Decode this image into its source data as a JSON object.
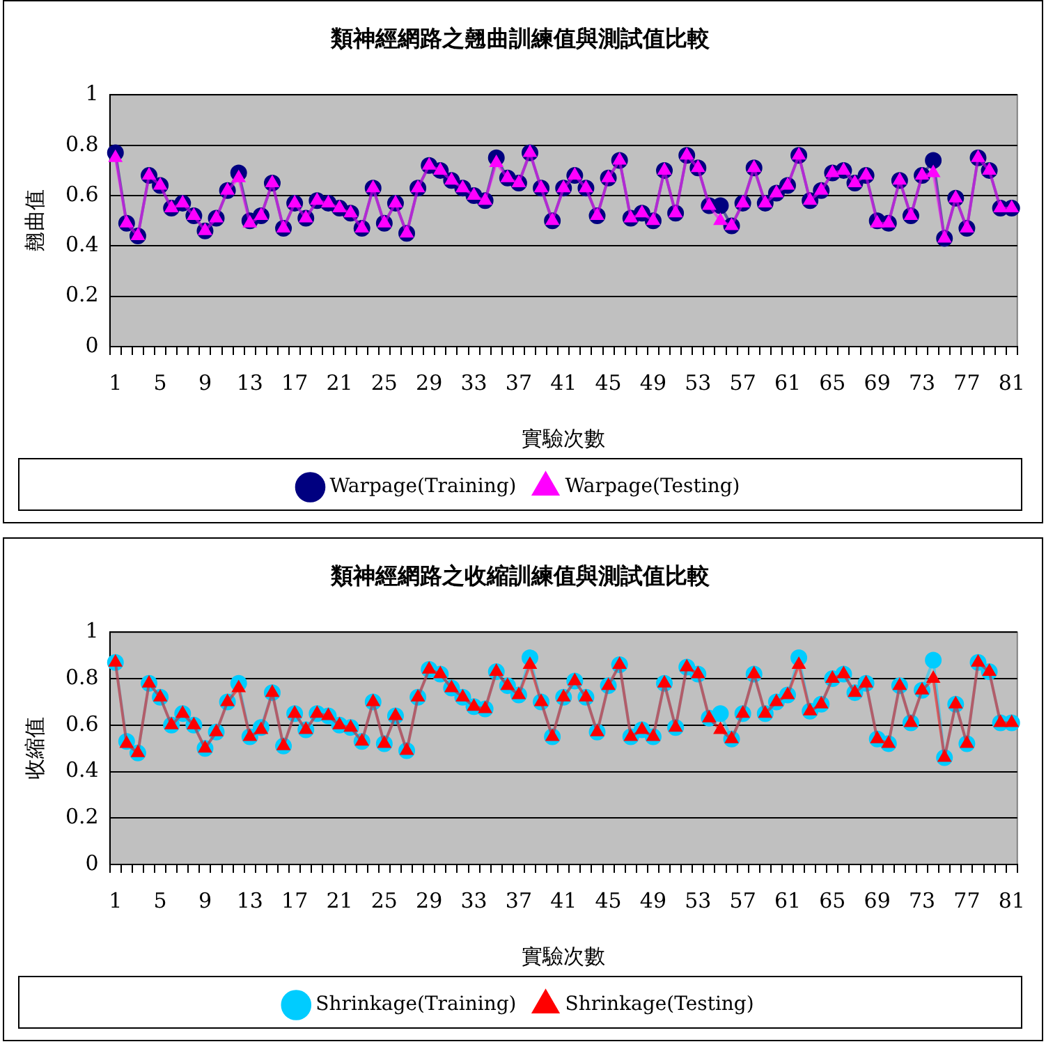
{
  "chart_data": [
    {
      "type": "line",
      "title": "類神經網路之翹曲訓練值與測試值比較",
      "xlabel": "實驗次數",
      "ylabel": "翹曲值",
      "categories": [
        "1",
        null,
        null,
        null,
        "5",
        null,
        null,
        null,
        "9",
        null,
        null,
        null,
        "13",
        null,
        null,
        null,
        "17",
        null,
        null,
        null,
        "21",
        null,
        null,
        null,
        "25",
        null,
        null,
        null,
        "29",
        null,
        null,
        null,
        "33",
        null,
        null,
        null,
        "37",
        null,
        null,
        null,
        "41",
        null,
        null,
        null,
        "45",
        null,
        null,
        null,
        "49",
        null,
        null,
        null,
        "53",
        null,
        null,
        null,
        "57",
        null,
        null,
        null,
        "61",
        null,
        null,
        null,
        "65",
        null,
        null,
        null,
        "69",
        null,
        null,
        null,
        "73",
        null,
        null,
        null,
        "77",
        null,
        null,
        null,
        "81"
      ],
      "series": [
        {
          "name": "Warpage(Training)",
          "color": "#000080",
          "marker": "circle",
          "values": [
            0.77,
            0.49,
            0.44,
            0.68,
            0.64,
            0.55,
            0.57,
            0.52,
            0.46,
            0.51,
            0.62,
            0.69,
            0.5,
            0.52,
            0.65,
            0.47,
            0.57,
            0.51,
            0.58,
            0.57,
            0.55,
            0.53,
            0.47,
            0.63,
            0.49,
            0.57,
            0.45,
            0.63,
            0.72,
            0.7,
            0.66,
            0.63,
            0.6,
            0.58,
            0.75,
            0.67,
            0.65,
            0.77,
            0.63,
            0.5,
            0.63,
            0.68,
            0.63,
            0.52,
            0.67,
            0.74,
            0.51,
            0.53,
            0.5,
            0.7,
            0.53,
            0.76,
            0.71,
            0.56,
            0.56,
            0.48,
            0.57,
            0.71,
            0.57,
            0.61,
            0.64,
            0.76,
            0.58,
            0.62,
            0.69,
            0.7,
            0.65,
            0.68,
            0.5,
            0.49,
            0.66,
            0.52,
            0.68,
            0.74,
            0.43,
            0.59,
            0.47,
            0.75,
            0.7,
            0.55,
            0.55
          ]
        },
        {
          "name": "Warpage(Testing)",
          "color": "#ff00ff",
          "marker": "triangle",
          "values": [
            0.75,
            0.49,
            0.44,
            0.68,
            0.64,
            0.55,
            0.57,
            0.52,
            0.46,
            0.51,
            0.62,
            0.67,
            0.49,
            0.52,
            0.65,
            0.47,
            0.57,
            0.51,
            0.58,
            0.57,
            0.55,
            0.53,
            0.47,
            0.63,
            0.49,
            0.57,
            0.45,
            0.63,
            0.72,
            0.7,
            0.66,
            0.63,
            0.6,
            0.58,
            0.73,
            0.67,
            0.65,
            0.77,
            0.63,
            0.5,
            0.63,
            0.68,
            0.63,
            0.52,
            0.67,
            0.74,
            0.51,
            0.53,
            0.5,
            0.7,
            0.53,
            0.76,
            0.71,
            0.56,
            0.5,
            0.48,
            0.57,
            0.71,
            0.57,
            0.61,
            0.64,
            0.76,
            0.58,
            0.62,
            0.69,
            0.7,
            0.65,
            0.68,
            0.49,
            0.49,
            0.66,
            0.52,
            0.68,
            0.69,
            0.43,
            0.59,
            0.47,
            0.75,
            0.7,
            0.55,
            0.55
          ]
        }
      ],
      "ylim": [
        0,
        1
      ],
      "yticks": [
        0,
        0.2,
        0.4,
        0.6,
        0.8,
        1
      ],
      "grid": "y",
      "legend": "bottom"
    },
    {
      "type": "line",
      "title": "類神經網路之收縮訓練值與測試值比較",
      "xlabel": "實驗次數",
      "ylabel": "收縮值",
      "categories": [
        "1",
        null,
        null,
        null,
        "5",
        null,
        null,
        null,
        "9",
        null,
        null,
        null,
        "13",
        null,
        null,
        null,
        "17",
        null,
        null,
        null,
        "21",
        null,
        null,
        null,
        "25",
        null,
        null,
        null,
        "29",
        null,
        null,
        null,
        "33",
        null,
        null,
        null,
        "37",
        null,
        null,
        null,
        "41",
        null,
        null,
        null,
        "45",
        null,
        null,
        null,
        "49",
        null,
        null,
        null,
        "53",
        null,
        null,
        null,
        "57",
        null,
        null,
        null,
        "61",
        null,
        null,
        null,
        "65",
        null,
        null,
        null,
        "69",
        null,
        null,
        null,
        "73",
        null,
        null,
        null,
        "77",
        null,
        null,
        null,
        "81"
      ],
      "series": [
        {
          "name": "Shrinkage(Training)",
          "color": "#00ccff",
          "marker": "circle",
          "values": [
            0.87,
            0.53,
            0.48,
            0.78,
            0.72,
            0.6,
            0.65,
            0.6,
            0.5,
            0.57,
            0.7,
            0.78,
            0.55,
            0.59,
            0.74,
            0.51,
            0.65,
            0.58,
            0.65,
            0.64,
            0.6,
            0.59,
            0.53,
            0.7,
            0.52,
            0.64,
            0.49,
            0.72,
            0.84,
            0.82,
            0.76,
            0.72,
            0.68,
            0.67,
            0.83,
            0.77,
            0.73,
            0.89,
            0.7,
            0.55,
            0.72,
            0.79,
            0.72,
            0.57,
            0.77,
            0.86,
            0.55,
            0.58,
            0.55,
            0.78,
            0.59,
            0.85,
            0.82,
            0.63,
            0.65,
            0.54,
            0.65,
            0.82,
            0.65,
            0.7,
            0.73,
            0.89,
            0.66,
            0.69,
            0.8,
            0.82,
            0.74,
            0.78,
            0.54,
            0.52,
            0.77,
            0.61,
            0.75,
            0.88,
            0.46,
            0.69,
            0.52,
            0.87,
            0.83,
            0.61,
            0.61
          ]
        },
        {
          "name": "Shrinkage(Testing)",
          "color": "#ff0000",
          "marker": "triangle",
          "values": [
            0.87,
            0.52,
            0.48,
            0.78,
            0.72,
            0.6,
            0.65,
            0.6,
            0.5,
            0.57,
            0.7,
            0.76,
            0.55,
            0.58,
            0.74,
            0.51,
            0.65,
            0.58,
            0.65,
            0.64,
            0.6,
            0.59,
            0.53,
            0.7,
            0.52,
            0.64,
            0.49,
            0.72,
            0.84,
            0.82,
            0.76,
            0.72,
            0.68,
            0.67,
            0.83,
            0.77,
            0.73,
            0.86,
            0.7,
            0.55,
            0.72,
            0.79,
            0.72,
            0.57,
            0.77,
            0.86,
            0.55,
            0.58,
            0.55,
            0.78,
            0.59,
            0.85,
            0.82,
            0.63,
            0.58,
            0.54,
            0.65,
            0.82,
            0.65,
            0.7,
            0.73,
            0.86,
            0.66,
            0.69,
            0.8,
            0.82,
            0.74,
            0.78,
            0.54,
            0.52,
            0.77,
            0.61,
            0.75,
            0.8,
            0.46,
            0.69,
            0.52,
            0.87,
            0.83,
            0.61,
            0.61
          ]
        }
      ],
      "ylim": [
        0,
        1
      ],
      "yticks": [
        0,
        0.2,
        0.4,
        0.6,
        0.8,
        1
      ],
      "grid": "y",
      "legend": "bottom"
    }
  ]
}
